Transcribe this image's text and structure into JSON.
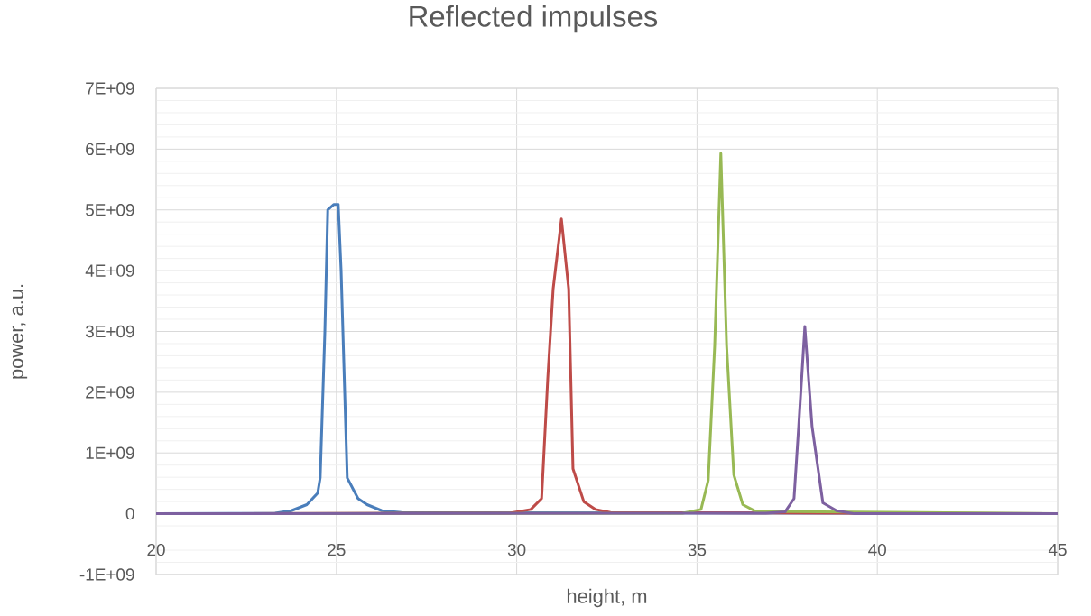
{
  "chart_data": {
    "type": "line",
    "title": "Reflected impulses",
    "xlabel": "height, m",
    "ylabel": "power, a.u.",
    "grid": true,
    "marker": "none",
    "line_style": "solid",
    "xlim": [
      20,
      45
    ],
    "xticks": [
      20,
      25,
      30,
      35,
      40,
      45
    ],
    "ylim": [
      -1000000000.0,
      7000000000.0
    ],
    "yticks": [
      {
        "value": -1000000000.0,
        "label": "-1E+09"
      },
      {
        "value": 0,
        "label": "0"
      },
      {
        "value": 1000000000.0,
        "label": "1E+09"
      },
      {
        "value": 2000000000.0,
        "label": "2E+09"
      },
      {
        "value": 3000000000.0,
        "label": "3E+09"
      },
      {
        "value": 4000000000.0,
        "label": "4E+09"
      },
      {
        "value": 5000000000.0,
        "label": "5E+09"
      },
      {
        "value": 6000000000.0,
        "label": "6E+09"
      },
      {
        "value": 7000000000.0,
        "label": "7E+09"
      }
    ],
    "series": [
      {
        "color": "#4a7ebb",
        "x": [
          20,
          23.3,
          23.75,
          24.18,
          24.48,
          24.55,
          24.68,
          24.76,
          24.93,
          25.05,
          25.13,
          25.3,
          25.6,
          25.85,
          26.26,
          26.8,
          45
        ],
        "values": [
          0,
          10000000.0,
          50000000.0,
          150000000.0,
          340000000.0,
          590000000.0,
          3000000000.0,
          5000000000.0,
          5090000000.0,
          5090000000.0,
          4000000000.0,
          590000000.0,
          250000000.0,
          150000000.0,
          50000000.0,
          20000000.0,
          0
        ]
      },
      {
        "color": "#be4b48",
        "x": [
          20,
          29.8,
          30.39,
          30.69,
          30.86,
          31.01,
          31.24,
          31.44,
          31.56,
          31.86,
          32.19,
          32.6,
          45
        ],
        "values": [
          0,
          10000000.0,
          70000000.0,
          250000000.0,
          2220000000.0,
          3700000000.0,
          4850000000.0,
          3700000000.0,
          740000000.0,
          200000000.0,
          70000000.0,
          20000000.0,
          0
        ]
      },
      {
        "color": "#98b954",
        "x": [
          20,
          34.6,
          35.11,
          35.31,
          35.49,
          35.66,
          35.82,
          36.02,
          36.27,
          36.62,
          45
        ],
        "values": [
          0,
          10000000.0,
          70000000.0,
          550000000.0,
          2770000000.0,
          5930000000.0,
          2770000000.0,
          640000000.0,
          150000000.0,
          40000000.0,
          0
        ]
      },
      {
        "color": "#7d60a0",
        "x": [
          20,
          36.9,
          37.44,
          37.69,
          37.82,
          37.99,
          38.19,
          38.49,
          38.87,
          39.37,
          45
        ],
        "values": [
          0,
          10000000.0,
          30000000.0,
          250000000.0,
          1440000000.0,
          3080000000.0,
          1440000000.0,
          180000000.0,
          50000000.0,
          0,
          0
        ]
      }
    ]
  }
}
